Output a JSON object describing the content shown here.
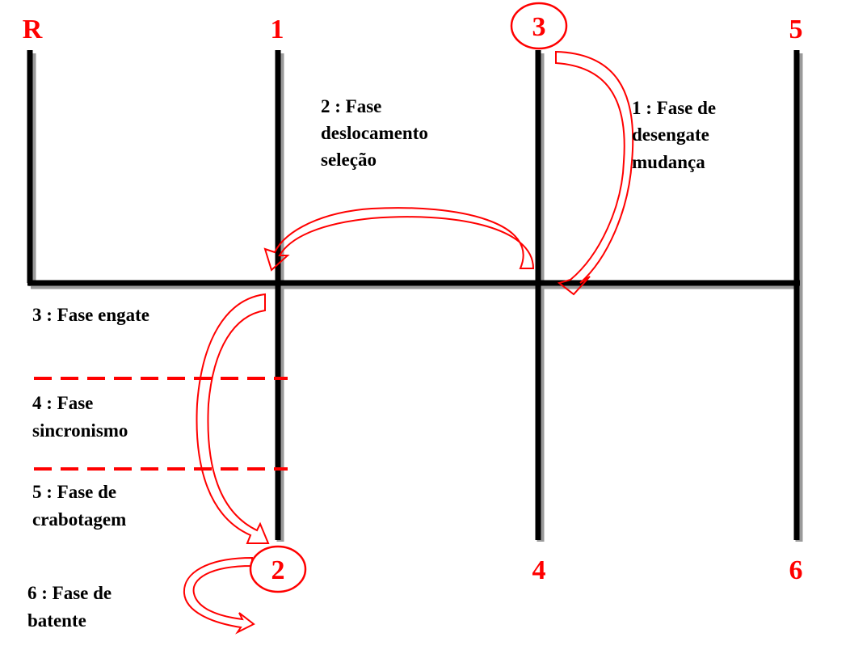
{
  "gears": {
    "reverse": "R",
    "first": "1",
    "second": "2",
    "third": "3",
    "fourth": "4",
    "fifth": "5",
    "sixth": "6"
  },
  "phases": {
    "phase1": {
      "lines": [
        "1 : Fase de",
        "desengate",
        "mudança"
      ]
    },
    "phase2": {
      "lines": [
        "2 : Fase",
        "deslocamento",
        "seleção"
      ]
    },
    "phase3": {
      "lines": [
        "3 : Fase engate"
      ]
    },
    "phase4": {
      "lines": [
        "4 : Fase",
        "sincronismo"
      ]
    },
    "phase5": {
      "lines": [
        "5 : Fase de",
        "crabotagem"
      ]
    },
    "phase6": {
      "lines": [
        "6 : Fase de",
        "batente"
      ]
    }
  },
  "colors": {
    "shift_pattern": "#000000",
    "shadow": "#9a9a9a",
    "accent": "#ff0000"
  }
}
